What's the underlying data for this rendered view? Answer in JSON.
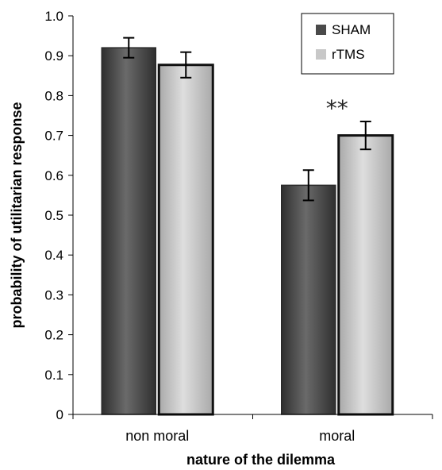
{
  "chart_data": {
    "type": "bar",
    "categories": [
      "non moral",
      "moral"
    ],
    "series": [
      {
        "name": "SHAM",
        "values": [
          0.92,
          0.575
        ],
        "errors": [
          0.025,
          0.038
        ],
        "color": "#4a4a4a"
      },
      {
        "name": "rTMS",
        "values": [
          0.877,
          0.7
        ],
        "errors": [
          0.032,
          0.035
        ],
        "color": "#c8c8c8"
      }
    ],
    "xlabel": "nature of the dilemma",
    "ylabel": "probability of utilitarian response",
    "ylim": [
      0,
      1.0
    ],
    "yticks": [
      "0",
      "0.1",
      "0.2",
      "0.3",
      "0.4",
      "0.5",
      "0.6",
      "0.7",
      "0.8",
      "0.9",
      "1.0"
    ],
    "legend": "top-right",
    "grid": false,
    "annotations": [
      {
        "text": "**",
        "category": "moral"
      }
    ]
  }
}
